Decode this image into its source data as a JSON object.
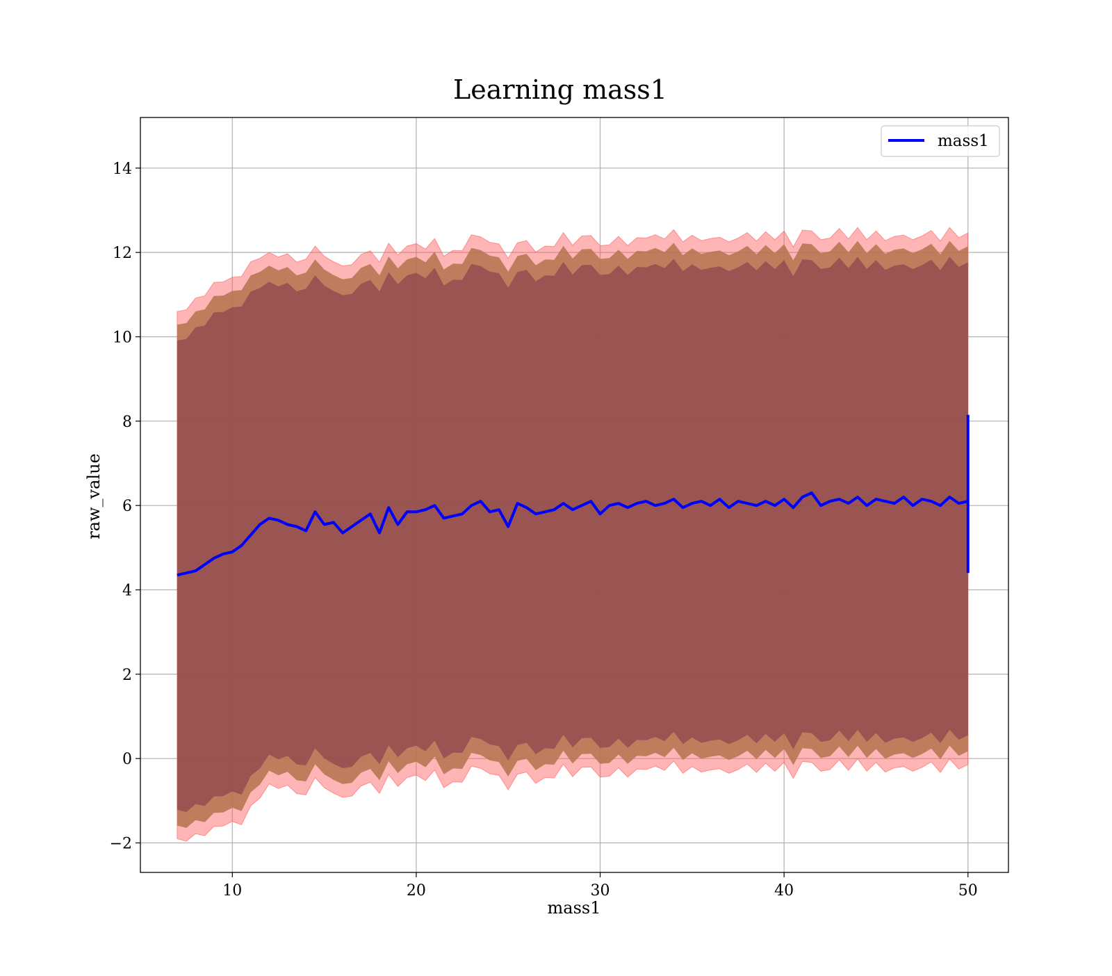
{
  "chart_data": {
    "type": "line",
    "title": "Learning mass1",
    "xlabel": "mass1",
    "ylabel": "raw_value",
    "xlim": [
      5.0,
      52.2
    ],
    "ylim": [
      -2.7,
      15.2
    ],
    "x_ticks": [
      10,
      20,
      30,
      40,
      50
    ],
    "y_ticks": [
      -2,
      0,
      2,
      4,
      6,
      8,
      10,
      12,
      14
    ],
    "x_tick_labels": [
      "10",
      "20",
      "30",
      "40",
      "50"
    ],
    "y_tick_labels": [
      "−2",
      "0",
      "2",
      "4",
      "6",
      "8",
      "10",
      "12",
      "14"
    ],
    "grid": true,
    "legend": {
      "position": "top-right",
      "entries": [
        "mass1"
      ]
    },
    "colors": {
      "line": "#0000ff",
      "outer_band": "#ff5a5a",
      "middle_band": "#b5734f",
      "inner_band": "#7a3349"
    },
    "series": [
      {
        "name": "mass1",
        "x": [
          7.0,
          7.5,
          8.0,
          8.5,
          9.0,
          9.5,
          10.0,
          10.5,
          11.0,
          11.5,
          12.0,
          12.5,
          13.0,
          13.5,
          14.0,
          14.5,
          15.0,
          15.5,
          16.0,
          16.5,
          17.0,
          17.5,
          18.0,
          18.5,
          19.0,
          19.5,
          20.0,
          20.5,
          21.0,
          21.5,
          22.0,
          22.5,
          23.0,
          23.5,
          24.0,
          24.5,
          25.0,
          25.5,
          26.0,
          26.5,
          27.0,
          27.5,
          28.0,
          28.5,
          29.0,
          29.5,
          30.0,
          30.5,
          31.0,
          31.5,
          32.0,
          32.5,
          33.0,
          33.5,
          34.0,
          34.5,
          35.0,
          35.5,
          36.0,
          36.5,
          37.0,
          37.5,
          38.0,
          38.5,
          39.0,
          39.5,
          40.0,
          40.5,
          41.0,
          41.5,
          42.0,
          42.5,
          43.0,
          43.5,
          44.0,
          44.5,
          45.0,
          45.5,
          46.0,
          46.5,
          47.0,
          47.5,
          48.0,
          48.5,
          49.0,
          49.5,
          50.0
        ],
        "y": [
          4.35,
          4.4,
          4.45,
          4.6,
          4.75,
          4.85,
          4.9,
          5.05,
          5.3,
          5.55,
          5.7,
          5.65,
          5.55,
          5.5,
          5.4,
          5.85,
          5.55,
          5.6,
          5.35,
          5.5,
          5.65,
          5.8,
          5.35,
          5.95,
          5.55,
          5.85,
          5.85,
          5.9,
          6.0,
          5.7,
          5.75,
          5.8,
          6.0,
          6.1,
          5.85,
          5.9,
          5.5,
          6.05,
          5.95,
          5.8,
          5.85,
          5.9,
          6.05,
          5.9,
          6.0,
          6.1,
          5.8,
          6.0,
          6.05,
          5.95,
          6.05,
          6.1,
          6.0,
          6.05,
          6.15,
          5.95,
          6.05,
          6.1,
          6.0,
          6.15,
          5.95,
          6.1,
          6.05,
          6.0,
          6.1,
          6.0,
          6.15,
          5.95,
          6.2,
          6.3,
          6.0,
          6.1,
          6.15,
          6.05,
          6.2,
          6.0,
          6.15,
          6.1,
          6.05,
          6.2,
          6.0,
          6.15,
          6.1,
          6.0,
          6.2,
          6.05,
          6.1
        ],
        "band_half_width": [
          6.25,
          6.3,
          6.35,
          6.4,
          6.45,
          6.45,
          6.45,
          6.5,
          6.45,
          6.4,
          6.3,
          6.3,
          6.3,
          6.3,
          6.35,
          6.3,
          6.3,
          6.3,
          6.3,
          6.3,
          6.3,
          6.3,
          6.3,
          6.3,
          6.3,
          6.3,
          6.3,
          6.3,
          6.3,
          6.3,
          6.3,
          6.3,
          6.3,
          6.3,
          6.3,
          6.3,
          6.3,
          6.3,
          6.3,
          6.3,
          6.3,
          6.3,
          6.3,
          6.3,
          6.3,
          6.3,
          6.3,
          6.3,
          6.3,
          6.3,
          6.3,
          6.3,
          6.3,
          6.3,
          6.3,
          6.3,
          6.3,
          6.3,
          6.3,
          6.3,
          6.3,
          6.3,
          6.3,
          6.3,
          6.3,
          6.3,
          6.3,
          6.3,
          6.3,
          6.3,
          6.3,
          6.3,
          6.3,
          6.3,
          6.3,
          6.3,
          6.3,
          6.3,
          6.3,
          6.3,
          6.3,
          6.3,
          6.3,
          6.3,
          6.3,
          6.3,
          6.3
        ],
        "end_spike": {
          "x": 50.0,
          "y_min": 4.4,
          "y_max": 8.15
        }
      }
    ]
  }
}
